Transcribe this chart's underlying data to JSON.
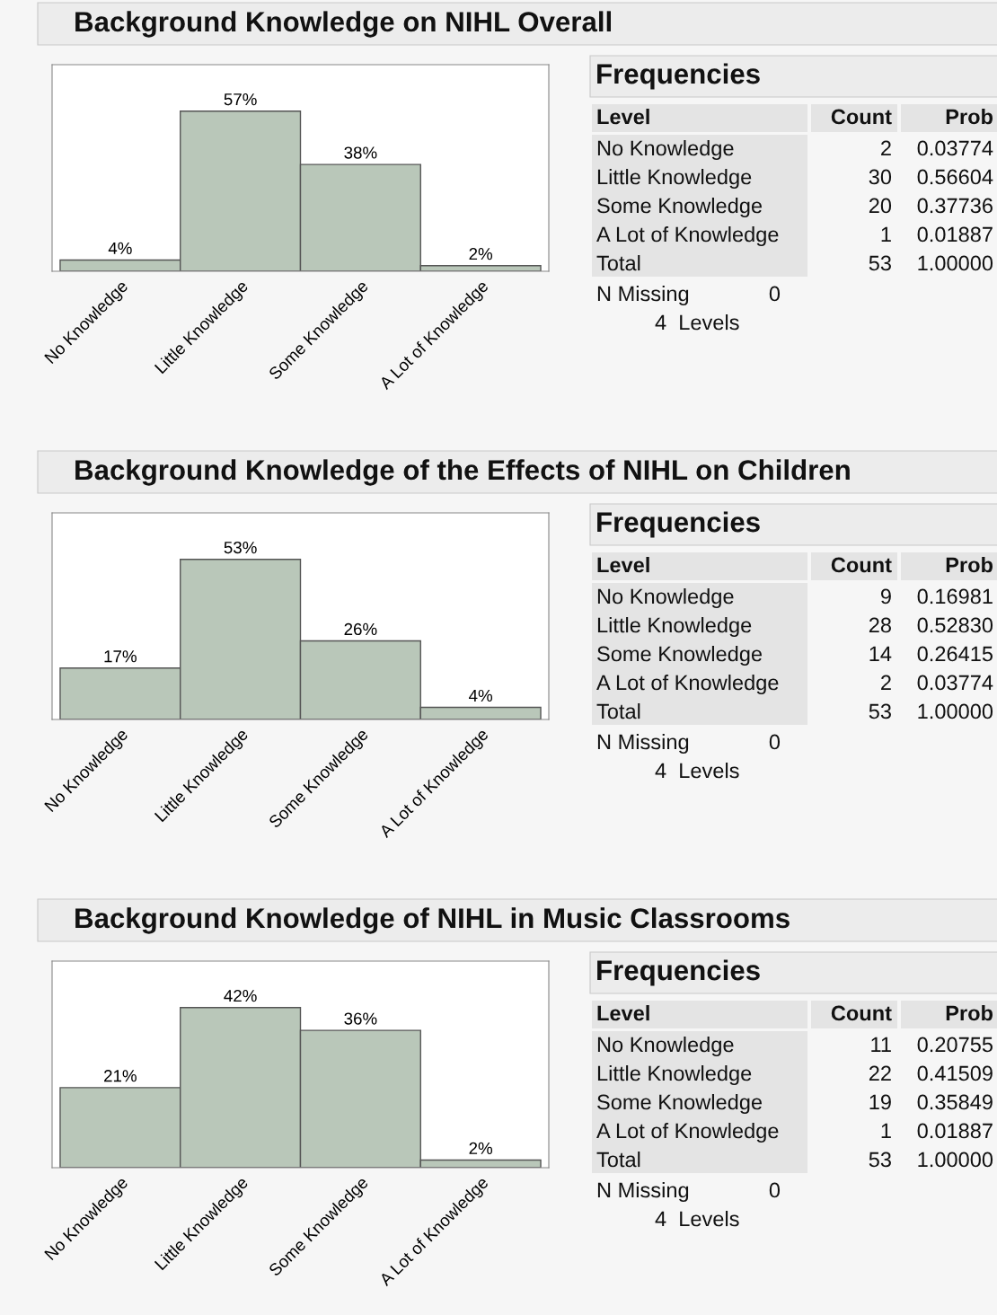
{
  "chart_data": [
    {
      "type": "bar",
      "title": "Background Knowledge on NIHL Overall",
      "categories": [
        "No Knowledge",
        "Little Knowledge",
        "Some Knowledge",
        "A Lot of Knowledge"
      ],
      "values": [
        4,
        57,
        38,
        2
      ],
      "value_labels": [
        "4%",
        "57%",
        "38%",
        "2%"
      ],
      "color": "#b9c7b9",
      "grid": false,
      "legend": false
    },
    {
      "type": "other",
      "title": "Frequencies",
      "xlabel": "Level",
      "categories": [
        "No Knowledge",
        "Little Knowledge",
        "Some Knowledge",
        "A Lot of Knowledge",
        "Total"
      ],
      "series": [
        {
          "name": "Count",
          "values": [
            2,
            30,
            20,
            1,
            53
          ],
          "value_labels": [
            "2",
            "30",
            "20",
            "1",
            "53"
          ]
        },
        {
          "name": "Prob",
          "values": [
            0.03774,
            0.56604,
            0.37736,
            0.01887,
            1.0
          ],
          "value_labels": [
            "0.03774",
            "0.56604",
            "0.37736",
            "0.01887",
            "1.00000"
          ]
        }
      ],
      "annotations": [
        "N Missing",
        "0",
        "4  Levels"
      ]
    },
    {
      "type": "bar",
      "title": "Background Knowledge of the Effects of NIHL on Children",
      "categories": [
        "No Knowledge",
        "Little Knowledge",
        "Some Knowledge",
        "A Lot of Knowledge"
      ],
      "values": [
        17,
        53,
        26,
        4
      ],
      "value_labels": [
        "17%",
        "53%",
        "26%",
        "4%"
      ],
      "color": "#b9c7b9",
      "grid": false,
      "legend": false
    },
    {
      "type": "other",
      "title": "Frequencies",
      "xlabel": "Level",
      "categories": [
        "No Knowledge",
        "Little Knowledge",
        "Some Knowledge",
        "A Lot of Knowledge",
        "Total"
      ],
      "series": [
        {
          "name": "Count",
          "values": [
            9,
            28,
            14,
            2,
            53
          ],
          "value_labels": [
            "9",
            "28",
            "14",
            "2",
            "53"
          ]
        },
        {
          "name": "Prob",
          "values": [
            0.16981,
            0.5283,
            0.26415,
            0.03774,
            1.0
          ],
          "value_labels": [
            "0.16981",
            "0.52830",
            "0.26415",
            "0.03774",
            "1.00000"
          ]
        }
      ],
      "annotations": [
        "N Missing",
        "0",
        "4  Levels"
      ]
    },
    {
      "type": "bar",
      "title": "Background Knowledge of NIHL in Music Classrooms",
      "categories": [
        "No Knowledge",
        "Little Knowledge",
        "Some Knowledge",
        "A Lot of Knowledge"
      ],
      "values": [
        21,
        42,
        36,
        2
      ],
      "value_labels": [
        "21%",
        "42%",
        "36%",
        "2%"
      ],
      "color": "#b9c7b9",
      "grid": false,
      "legend": false
    },
    {
      "type": "other",
      "title": "Frequencies",
      "xlabel": "Level",
      "categories": [
        "No Knowledge",
        "Little Knowledge",
        "Some Knowledge",
        "A Lot of Knowledge",
        "Total"
      ],
      "series": [
        {
          "name": "Count",
          "values": [
            11,
            22,
            19,
            1,
            53
          ],
          "value_labels": [
            "11",
            "22",
            "19",
            "1",
            "53"
          ]
        },
        {
          "name": "Prob",
          "values": [
            0.20755,
            0.41509,
            0.35849,
            0.01887,
            1.0
          ],
          "value_labels": [
            "0.20755",
            "0.41509",
            "0.35849",
            "0.01887",
            "1.00000"
          ]
        }
      ],
      "annotations": [
        "N Missing",
        "0",
        "4  Levels"
      ]
    }
  ]
}
